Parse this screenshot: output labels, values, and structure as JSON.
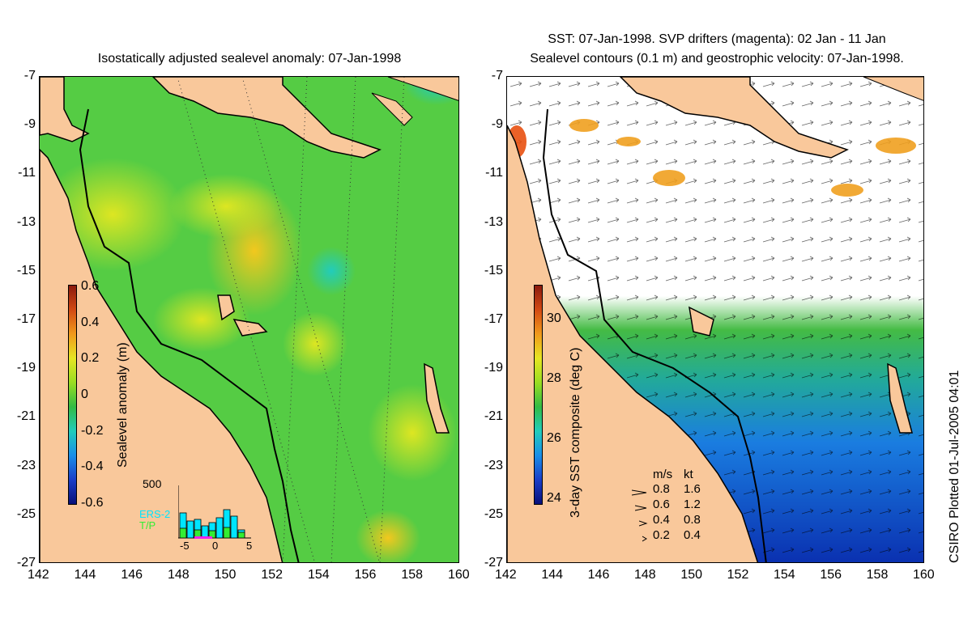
{
  "left_panel": {
    "title": "Isostatically adjusted sealevel anomaly: 07-Jan-1998",
    "colorbar": {
      "label": "Sealevel anomaly (m)",
      "ticks": [
        "0.6",
        "0.4",
        "0.2",
        "0",
        "-0.2",
        "-0.4",
        "-0.6"
      ]
    },
    "inset": {
      "ymax_label": "500",
      "series": [
        "ERS-2",
        "T/P"
      ],
      "series_colors": [
        "#00e5ff",
        "#33ee33"
      ],
      "xticks": [
        "-5",
        "0",
        "5"
      ]
    }
  },
  "right_panel": {
    "title_line1": "SST: 07-Jan-1998. SVP drifters (magenta): 02 Jan - 11 Jan",
    "title_line2": "Sealevel contours (0.1 m) and geostrophic velocity: 07-Jan-1998.",
    "colorbar": {
      "label": "3-day SST composite (deg C)",
      "ticks": [
        "30",
        "28",
        "26",
        "24"
      ]
    },
    "velocity_legend": {
      "header_ms": "m/s",
      "header_kt": "kt",
      "rows": [
        {
          "ms": "0.8",
          "kt": "1.6"
        },
        {
          "ms": "0.6",
          "kt": "1.2"
        },
        {
          "ms": "0.4",
          "kt": "0.8"
        },
        {
          "ms": "0.2",
          "kt": "0.4"
        }
      ]
    }
  },
  "axes": {
    "x_ticks": [
      "142",
      "144",
      "146",
      "148",
      "150",
      "152",
      "154",
      "156",
      "158",
      "160"
    ],
    "y_ticks": [
      "-7",
      "-9",
      "-11",
      "-13",
      "-15",
      "-17",
      "-19",
      "-21",
      "-23",
      "-25",
      "-27"
    ]
  },
  "credit": "CSIRO Plotted 01-Jul-2005 04:01",
  "colors": {
    "land": "#f9c89b",
    "ocean_green": "#44cc44",
    "ocean_yellowgreen": "#aadd22",
    "ocean_cyan": "#22ccaa",
    "sst_blue": "#1a73d9",
    "sst_green": "#33bb33"
  }
}
